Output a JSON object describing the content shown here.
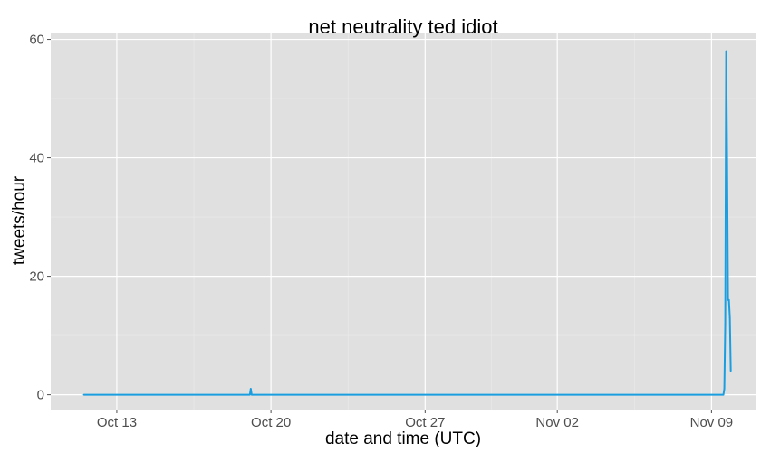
{
  "chart_data": {
    "type": "line",
    "title": "net neutrality ted idiot",
    "xlabel": "date and time (UTC)",
    "ylabel": "tweets/hour",
    "ylim": [
      -2.5,
      61
    ],
    "xlim": [
      "2014-10-10T00:00",
      "2014-11-11T00:00"
    ],
    "x_ticks": [
      {
        "date": "2014-10-13T00:00",
        "label": "Oct 13"
      },
      {
        "date": "2014-10-20T00:00",
        "label": "Oct 20"
      },
      {
        "date": "2014-10-27T00:00",
        "label": "Oct 27"
      },
      {
        "date": "2014-11-02T00:00",
        "label": "Nov 02"
      },
      {
        "date": "2014-11-09T00:00",
        "label": "Nov 09"
      }
    ],
    "y_ticks": [
      0,
      20,
      40,
      60
    ],
    "grid": true,
    "background": "#e0e0e0",
    "grid_color": "#ffffff",
    "line_color": "#1a9ee0",
    "series": [
      {
        "points": [
          {
            "x": "2014-10-11T12:00",
            "y": 0
          },
          {
            "x": "2014-10-19T01:00",
            "y": 0
          },
          {
            "x": "2014-10-19T02:00",
            "y": 1
          },
          {
            "x": "2014-10-19T03:00",
            "y": 0
          },
          {
            "x": "2014-11-09T13:00",
            "y": 0
          },
          {
            "x": "2014-11-09T14:00",
            "y": 1
          },
          {
            "x": "2014-11-09T15:00",
            "y": 12
          },
          {
            "x": "2014-11-09T16:00",
            "y": 58
          },
          {
            "x": "2014-11-09T17:00",
            "y": 40
          },
          {
            "x": "2014-11-09T18:00",
            "y": 16
          },
          {
            "x": "2014-11-09T19:00",
            "y": 16
          },
          {
            "x": "2014-11-09T20:00",
            "y": 13
          },
          {
            "x": "2014-11-09T21:00",
            "y": 4
          }
        ]
      }
    ]
  }
}
